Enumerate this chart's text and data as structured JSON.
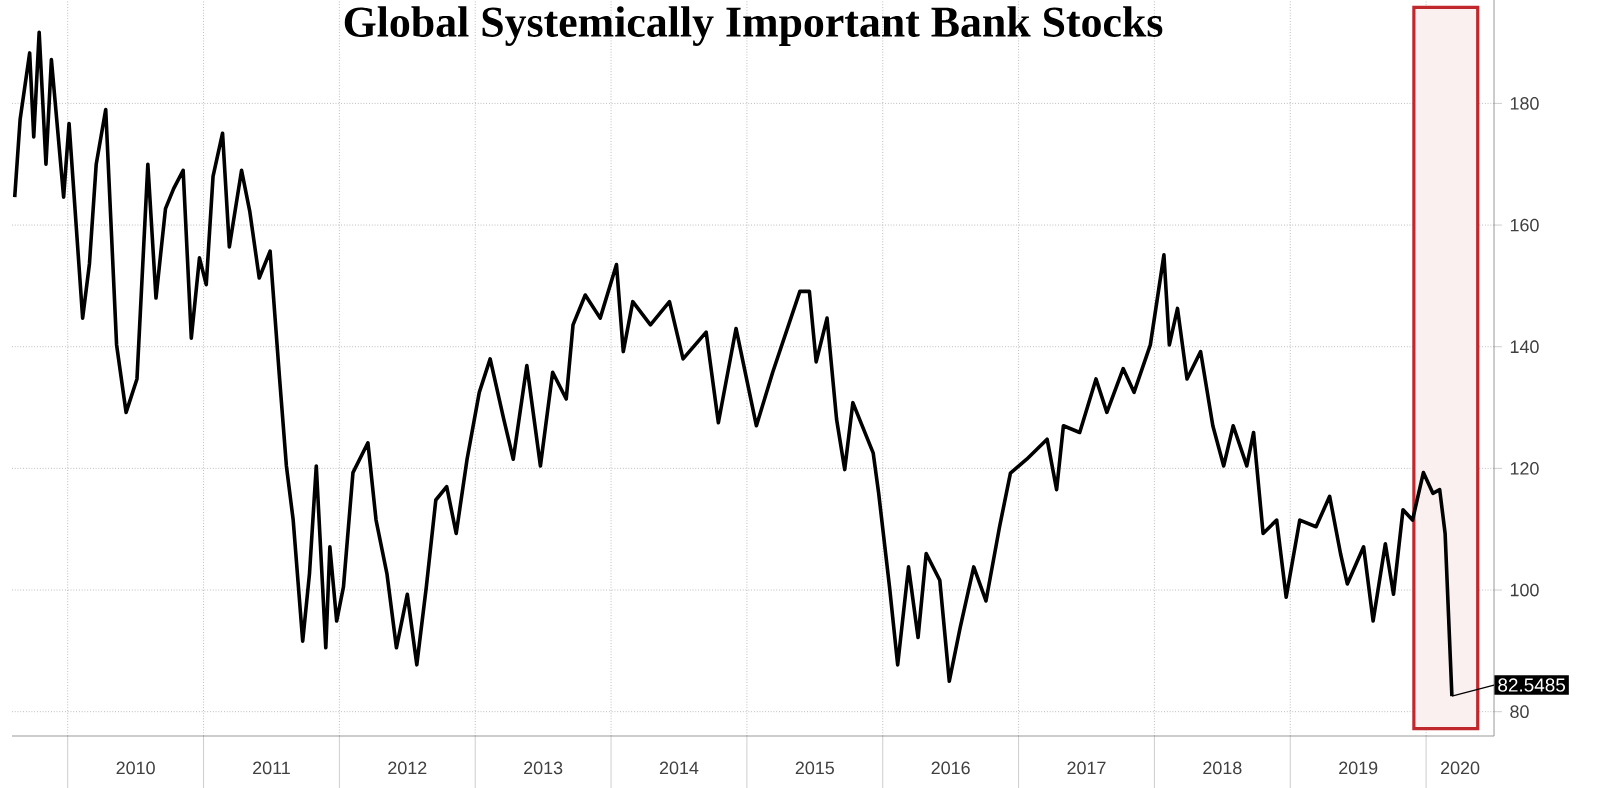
{
  "chart_data": {
    "type": "line",
    "title": "Global Systemically Important Bank Stocks",
    "x": [
      2009.61,
      2009.65,
      2009.72,
      2009.75,
      2009.79,
      2009.84,
      2009.88,
      2009.97,
      2010.01,
      2010.11,
      2010.16,
      2010.21,
      2010.28,
      2010.36,
      2010.43,
      2010.51,
      2010.59,
      2010.65,
      2010.72,
      2010.78,
      2010.85,
      2010.91,
      2010.97,
      2011.02,
      2011.07,
      2011.14,
      2011.19,
      2011.28,
      2011.34,
      2011.41,
      2011.49,
      2011.56,
      2011.61,
      2011.66,
      2011.73,
      2011.78,
      2011.83,
      2011.9,
      2011.93,
      2011.98,
      2012.03,
      2012.1,
      2012.21,
      2012.27,
      2012.35,
      2012.42,
      2012.5,
      2012.57,
      2012.64,
      2012.71,
      2012.79,
      2012.86,
      2012.94,
      2013.03,
      2013.11,
      2013.21,
      2013.28,
      2013.38,
      2013.48,
      2013.57,
      2013.67,
      2013.72,
      2013.81,
      2013.92,
      2014.04,
      2014.09,
      2014.16,
      2014.29,
      2014.43,
      2014.53,
      2014.7,
      2014.79,
      2014.92,
      2015.07,
      2015.19,
      2015.39,
      2015.46,
      2015.51,
      2015.59,
      2015.66,
      2015.72,
      2015.78,
      2015.93,
      2015.97,
      2016.05,
      2016.11,
      2016.19,
      2016.26,
      2016.32,
      2016.42,
      2016.49,
      2016.57,
      2016.67,
      2016.76,
      2016.86,
      2016.94,
      2017.06,
      2017.21,
      2017.28,
      2017.33,
      2017.45,
      2017.57,
      2017.65,
      2017.77,
      2017.85,
      2017.97,
      2018.07,
      2018.11,
      2018.17,
      2018.24,
      2018.34,
      2018.43,
      2018.51,
      2018.58,
      2018.68,
      2018.73,
      2018.8,
      2018.9,
      2018.97,
      2019.07,
      2019.19,
      2019.29,
      2019.37,
      2019.42,
      2019.54,
      2019.61,
      2019.7,
      2019.76,
      2019.83,
      2019.9,
      2019.98,
      2020.05,
      2020.1,
      2020.14,
      2020.19
    ],
    "series": [
      {
        "color": "#000000",
        "values": [
          164.6,
          177.4,
          188.3,
          174.5,
          191.7,
          170,
          187.2,
          164.6,
          176.7,
          144.7,
          153.6,
          170,
          179,
          140.3,
          129.2,
          134.7,
          170,
          148,
          162.7,
          166,
          169,
          141.4,
          154.6,
          150.2,
          168,
          175.1,
          156.4,
          169,
          162.3,
          151.3,
          155.7,
          134.7,
          120.4,
          111.5,
          91.6,
          102.7,
          120.4,
          90.5,
          107.1,
          94.9,
          100.5,
          119.3,
          124.2,
          111.5,
          102.7,
          90.5,
          99.3,
          87.7,
          100.5,
          114.8,
          117,
          109.3,
          121.5,
          132.5,
          138,
          128.1,
          121.5,
          136.9,
          120.4,
          135.8,
          131.4,
          143.6,
          148.5,
          144.7,
          153.5,
          139.2,
          147.4,
          143.6,
          147.4,
          138,
          142.4,
          127.5,
          143,
          127,
          135.8,
          149.1,
          149.1,
          137.5,
          144.7,
          128.1,
          119.8,
          130.8,
          122.5,
          115.9,
          100.5,
          87.7,
          103.8,
          92.2,
          106,
          101.6,
          85,
          93.8,
          103.8,
          98.2,
          110.4,
          119.2,
          121.5,
          124.8,
          116.5,
          127,
          125.9,
          134.7,
          129.2,
          136.4,
          132.5,
          140.3,
          155.1,
          140.3,
          146.3,
          134.7,
          139.2,
          127,
          120.4,
          127,
          120.4,
          125.9,
          109.3,
          111.5,
          98.8,
          111.5,
          110.4,
          115.4,
          106,
          101,
          107.1,
          94.9,
          107.6,
          99.3,
          113.2,
          111.5,
          119.3,
          115.9,
          116.5,
          109.3,
          82.5485
        ]
      }
    ],
    "xlim": [
      2009.59,
      2020.5
    ],
    "xticks": [
      {
        "value": 2010,
        "label": null
      },
      {
        "value": 2010.5,
        "label": "2010"
      },
      {
        "value": 2011,
        "label": null
      },
      {
        "value": 2011.5,
        "label": "2011"
      },
      {
        "value": 2012,
        "label": null
      },
      {
        "value": 2012.5,
        "label": "2012"
      },
      {
        "value": 2013,
        "label": null
      },
      {
        "value": 2013.5,
        "label": "2013"
      },
      {
        "value": 2014,
        "label": null
      },
      {
        "value": 2014.5,
        "label": "2014"
      },
      {
        "value": 2015,
        "label": null
      },
      {
        "value": 2015.5,
        "label": "2015"
      },
      {
        "value": 2016,
        "label": null
      },
      {
        "value": 2016.5,
        "label": "2016"
      },
      {
        "value": 2017,
        "label": null
      },
      {
        "value": 2017.5,
        "label": "2017"
      },
      {
        "value": 2018,
        "label": null
      },
      {
        "value": 2018.5,
        "label": "2018"
      },
      {
        "value": 2019,
        "label": null
      },
      {
        "value": 2019.5,
        "label": "2019"
      },
      {
        "value": 2020,
        "label": null
      },
      {
        "value": 2020.25,
        "label": "2020"
      }
    ],
    "ylim": [
      76,
      197
    ],
    "yticks": [
      80,
      100,
      120,
      140,
      160,
      180
    ],
    "grid": true,
    "marker": "none",
    "line_style": "solid",
    "bands": [
      {
        "axis": "x",
        "from": 2019.91,
        "to": 2020.38,
        "color": "#c0282d"
      }
    ],
    "annotations": [
      {
        "text": "82.5485",
        "x": 2020.19,
        "y": 82.5485
      }
    ]
  }
}
